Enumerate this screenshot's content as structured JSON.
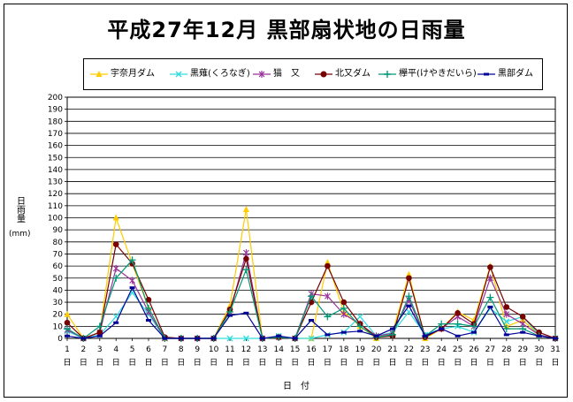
{
  "title": "平成27年12月 黒部扇状地の日雨量",
  "ylabel_main": "日雨量",
  "ylabel_unit": "(mm)",
  "xlabel": "日付",
  "chart_data": {
    "type": "line",
    "title": "平成27年12月 黒部扇状地の日雨量",
    "xlabel": "日付",
    "ylabel": "日雨量 (mm)",
    "ylim": [
      0,
      200
    ],
    "ytick_step": 10,
    "grid": true,
    "legend_position": "top",
    "x": [
      1,
      2,
      3,
      4,
      5,
      6,
      7,
      8,
      9,
      10,
      11,
      12,
      13,
      14,
      15,
      16,
      17,
      18,
      19,
      20,
      21,
      22,
      23,
      24,
      25,
      26,
      27,
      28,
      29,
      30,
      31
    ],
    "x_tick_labels": [
      "1",
      "2",
      "3",
      "4",
      "5",
      "6",
      "7",
      "8",
      "9",
      "10",
      "11",
      "12",
      "13",
      "14",
      "15",
      "16",
      "17",
      "18",
      "19",
      "20",
      "21",
      "22",
      "23",
      "24",
      "25",
      "26",
      "27",
      "28",
      "29",
      "30",
      "31"
    ],
    "x_tick_suffix": "日",
    "series": [
      {
        "name": "宇奈月ダム",
        "color": "#ffcc00",
        "marker": "triangle",
        "values": [
          20,
          0,
          5,
          100,
          62,
          25,
          0,
          0,
          0,
          0,
          27,
          107,
          0,
          1,
          0,
          0,
          63,
          22,
          10,
          0,
          5,
          53,
          0,
          8,
          22,
          15,
          60,
          10,
          15,
          3,
          0
        ]
      },
      {
        "name": "黒薙(くろなぎ)",
        "color": "#33dddd",
        "marker": "x",
        "values": [
          6,
          0,
          3,
          18,
          38,
          20,
          0,
          0,
          0,
          0,
          0,
          0,
          0,
          2,
          0,
          0,
          3,
          5,
          18,
          2,
          5,
          22,
          3,
          8,
          10,
          5,
          25,
          14,
          18,
          3,
          0
        ]
      },
      {
        "name": "猫　又",
        "color": "#993399",
        "marker": "star",
        "values": [
          7,
          0,
          5,
          58,
          48,
          22,
          0,
          0,
          0,
          0,
          22,
          71,
          0,
          1,
          0,
          37,
          35,
          20,
          12,
          2,
          4,
          32,
          2,
          8,
          18,
          10,
          50,
          20,
          12,
          3,
          0
        ]
      },
      {
        "name": "北又ダム",
        "color": "#770000",
        "marker": "circle",
        "values": [
          13,
          0,
          5,
          78,
          62,
          32,
          1,
          0,
          0,
          0,
          24,
          66,
          0,
          1,
          0,
          30,
          60,
          30,
          12,
          1,
          2,
          50,
          1,
          8,
          21,
          12,
          59,
          26,
          18,
          5,
          0
        ]
      },
      {
        "name": "欅平(けやきだいら)",
        "color": "#009977",
        "marker": "plus",
        "values": [
          8,
          0,
          10,
          50,
          65,
          25,
          0,
          0,
          0,
          0,
          22,
          57,
          0,
          1,
          0,
          35,
          18,
          25,
          10,
          1,
          3,
          35,
          2,
          12,
          12,
          10,
          34,
          8,
          8,
          2,
          0
        ]
      },
      {
        "name": "黒部ダム",
        "color": "#000099",
        "marker": "dash",
        "values": [
          2,
          0,
          2,
          13,
          42,
          15,
          0,
          0,
          0,
          0,
          19,
          21,
          0,
          2,
          0,
          15,
          3,
          5,
          6,
          2,
          8,
          27,
          2,
          8,
          2,
          5,
          26,
          3,
          5,
          2,
          0
        ]
      }
    ]
  }
}
